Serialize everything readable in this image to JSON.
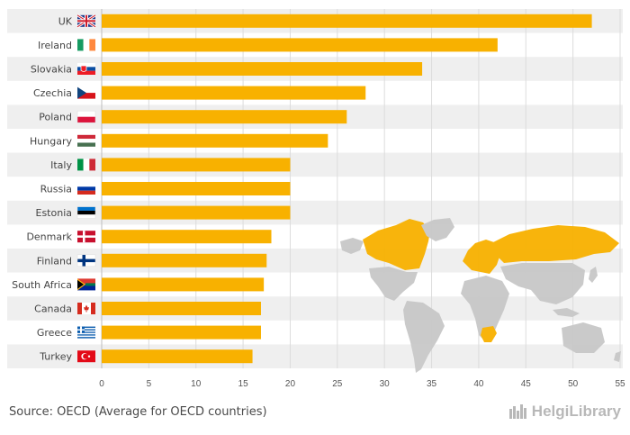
{
  "chart_data": {
    "type": "bar",
    "orientation": "horizontal",
    "categories": [
      "UK",
      "Ireland",
      "Slovakia",
      "Czechia",
      "Poland",
      "Hungary",
      "Italy",
      "Russia",
      "Estonia",
      "Denmark",
      "Finland",
      "South Africa",
      "Canada",
      "Greece",
      "Turkey"
    ],
    "values": [
      52,
      42,
      34,
      28,
      26,
      24,
      20,
      20,
      20,
      18,
      17.5,
      17.2,
      16.9,
      16.9,
      16
    ],
    "xlim": [
      0,
      55
    ],
    "xticks": [
      0,
      5,
      10,
      15,
      20,
      25,
      30,
      35,
      40,
      45,
      50,
      55
    ],
    "title": "",
    "xlabel": "",
    "ylabel": "",
    "grid": true,
    "bar_color": "#f8b100"
  },
  "flags": [
    "uk-flag-icon",
    "ireland-flag-icon",
    "slovakia-flag-icon",
    "czechia-flag-icon",
    "poland-flag-icon",
    "hungary-flag-icon",
    "italy-flag-icon",
    "russia-flag-icon",
    "estonia-flag-icon",
    "denmark-flag-icon",
    "finland-flag-icon",
    "south-africa-flag-icon",
    "canada-flag-icon",
    "greece-flag-icon",
    "turkey-flag-icon"
  ],
  "footer": {
    "source": "Source: OECD (Average for OECD countries)",
    "logo": "HelgiLibrary"
  },
  "colors": {
    "bar": "#f8b100",
    "row_band": "#efefef",
    "map_highlight": "#f8b100",
    "map_base": "#c8c8c8"
  }
}
